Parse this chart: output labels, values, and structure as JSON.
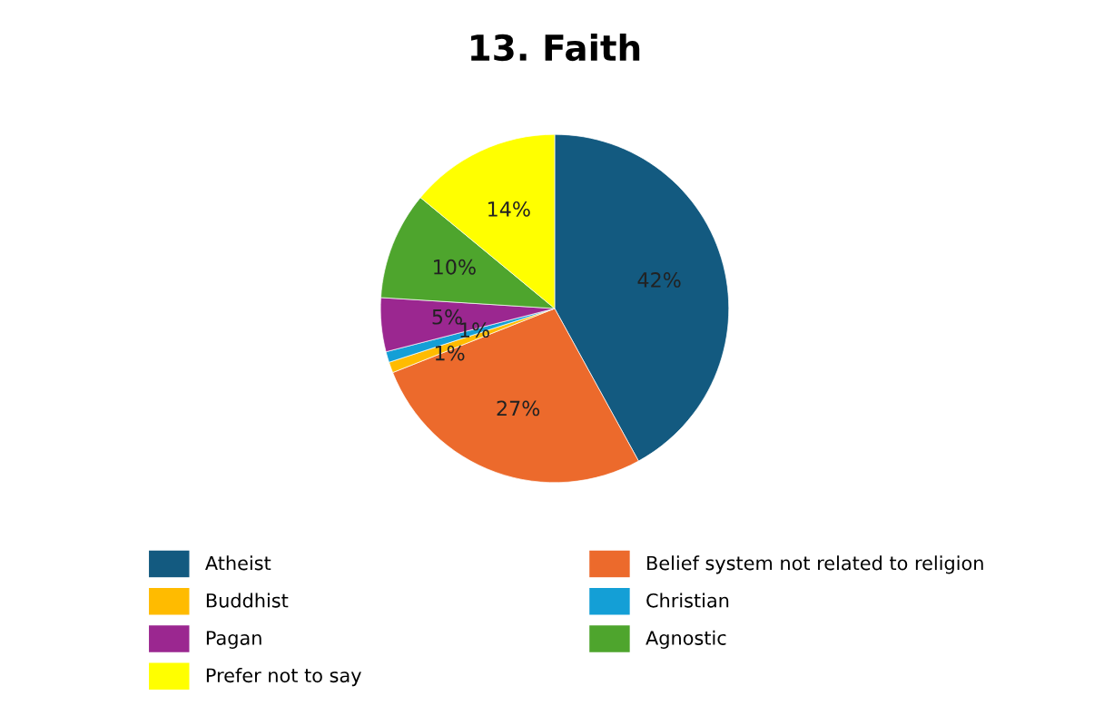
{
  "chart_data": {
    "type": "pie",
    "title": "13. Faith",
    "categories": [
      "Atheist",
      "Belief system not related to religion",
      "Buddhist",
      "Christian",
      "Pagan",
      "Agnostic",
      "Prefer not to say"
    ],
    "values": [
      42,
      27,
      1,
      1,
      5,
      10,
      14
    ],
    "value_labels": [
      "42%",
      "27%",
      "1%",
      "1%",
      "5%",
      "10%",
      "14%"
    ],
    "colors": [
      "#135a80",
      "#ec6a2c",
      "#ffbb00",
      "#149fd6",
      "#9b2790",
      "#4ea52d",
      "#ffff00"
    ],
    "legend": "bottom"
  }
}
